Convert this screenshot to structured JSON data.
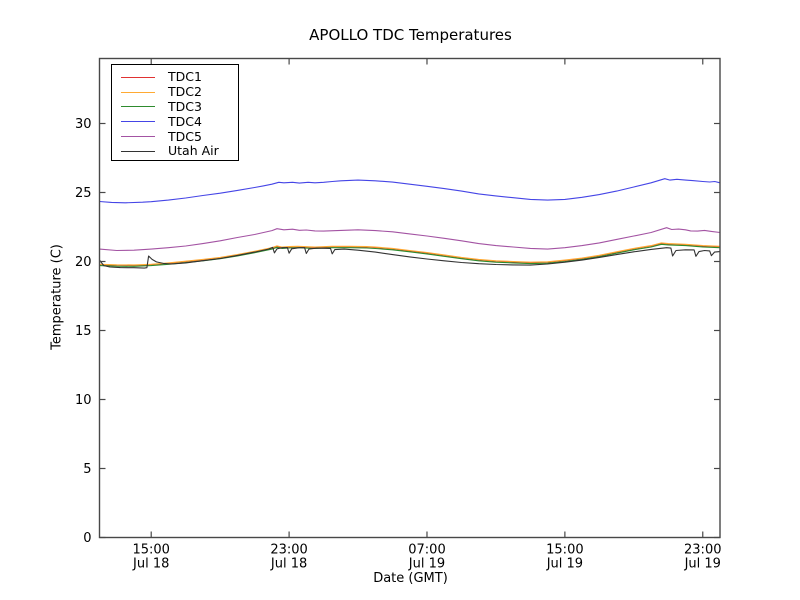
{
  "window": {
    "background": "#ffffff"
  },
  "chart_data": {
    "type": "line",
    "title": "APOLLO TDC Temperatures",
    "xlabel": "Date (GMT)",
    "ylabel": "Temperature (C)",
    "x_unit_hours_since": "Jul 18 12:00 GMT",
    "xlim": [
      0,
      36
    ],
    "ylim": [
      0,
      34.7
    ],
    "grid": false,
    "legend_position": "upper left",
    "tick_direction": "in",
    "axis_color": "#484848",
    "yticks": [
      0,
      5,
      10,
      15,
      20,
      25,
      30
    ],
    "xticks": [
      {
        "h": 3,
        "time": "15:00",
        "date": "Jul 18"
      },
      {
        "h": 11,
        "time": "23:00",
        "date": "Jul 18"
      },
      {
        "h": 19,
        "time": "07:00",
        "date": "Jul 19"
      },
      {
        "h": 27,
        "time": "15:00",
        "date": "Jul 19"
      },
      {
        "h": 35,
        "time": "23:00",
        "date": "Jul 19"
      }
    ],
    "series": [
      {
        "name": "TDC1",
        "color": "#e03232",
        "points": [
          [
            0,
            19.77
          ],
          [
            1,
            19.73
          ],
          [
            2,
            19.72
          ],
          [
            3,
            19.77
          ],
          [
            4,
            19.87
          ],
          [
            5,
            19.99
          ],
          [
            6,
            20.12
          ],
          [
            7,
            20.27
          ],
          [
            8,
            20.47
          ],
          [
            9,
            20.71
          ],
          [
            10,
            20.97
          ],
          [
            10.3,
            21.1
          ],
          [
            10.6,
            21.01
          ],
          [
            11,
            21.05
          ],
          [
            11.5,
            21.07
          ],
          [
            12,
            21.04
          ],
          [
            12.5,
            21.01
          ],
          [
            13,
            21.04
          ],
          [
            13.5,
            21.07
          ],
          [
            14.5,
            21.07
          ],
          [
            15.5,
            21.05
          ],
          [
            16,
            21.01
          ],
          [
            17,
            20.92
          ],
          [
            18,
            20.77
          ],
          [
            19,
            20.62
          ],
          [
            20,
            20.45
          ],
          [
            21,
            20.27
          ],
          [
            22,
            20.12
          ],
          [
            23,
            20.02
          ],
          [
            24,
            19.97
          ],
          [
            25,
            19.92
          ],
          [
            26,
            19.95
          ],
          [
            27,
            20.07
          ],
          [
            28,
            20.22
          ],
          [
            29,
            20.42
          ],
          [
            30,
            20.67
          ],
          [
            31,
            20.92
          ],
          [
            32,
            21.12
          ],
          [
            32.6,
            21.32
          ],
          [
            33,
            21.27
          ],
          [
            34,
            21.22
          ],
          [
            35,
            21.13
          ],
          [
            36,
            21.07
          ]
        ]
      },
      {
        "name": "TDC2",
        "color": "#ffaa33",
        "points": [
          [
            0,
            19.8
          ],
          [
            1,
            19.76
          ],
          [
            2,
            19.75
          ],
          [
            3,
            19.8
          ],
          [
            4,
            19.9
          ],
          [
            5,
            20.02
          ],
          [
            6,
            20.15
          ],
          [
            7,
            20.3
          ],
          [
            8,
            20.5
          ],
          [
            9,
            20.74
          ],
          [
            10,
            21.0
          ],
          [
            10.3,
            21.13
          ],
          [
            10.6,
            21.04
          ],
          [
            11,
            21.08
          ],
          [
            11.5,
            21.1
          ],
          [
            12,
            21.07
          ],
          [
            12.5,
            21.04
          ],
          [
            13,
            21.07
          ],
          [
            13.5,
            21.1
          ],
          [
            14.5,
            21.1
          ],
          [
            15.5,
            21.08
          ],
          [
            16,
            21.04
          ],
          [
            17,
            20.95
          ],
          [
            18,
            20.8
          ],
          [
            19,
            20.65
          ],
          [
            20,
            20.48
          ],
          [
            21,
            20.3
          ],
          [
            22,
            20.15
          ],
          [
            23,
            20.05
          ],
          [
            24,
            20.0
          ],
          [
            25,
            19.95
          ],
          [
            26,
            19.98
          ],
          [
            27,
            20.1
          ],
          [
            28,
            20.25
          ],
          [
            29,
            20.45
          ],
          [
            30,
            20.7
          ],
          [
            31,
            20.95
          ],
          [
            32,
            21.15
          ],
          [
            32.6,
            21.35
          ],
          [
            33,
            21.3
          ],
          [
            34,
            21.25
          ],
          [
            35,
            21.16
          ],
          [
            36,
            21.1
          ]
        ]
      },
      {
        "name": "TDC3",
        "color": "#2e8b2e",
        "points": [
          [
            0,
            19.7
          ],
          [
            1,
            19.66
          ],
          [
            2,
            19.65
          ],
          [
            3,
            19.7
          ],
          [
            4,
            19.8
          ],
          [
            5,
            19.92
          ],
          [
            6,
            20.05
          ],
          [
            7,
            20.2
          ],
          [
            8,
            20.4
          ],
          [
            9,
            20.64
          ],
          [
            10,
            20.9
          ],
          [
            10.3,
            21.03
          ],
          [
            10.6,
            20.94
          ],
          [
            11,
            20.98
          ],
          [
            11.5,
            21.0
          ],
          [
            12,
            20.97
          ],
          [
            12.5,
            20.94
          ],
          [
            13,
            20.97
          ],
          [
            13.5,
            21.0
          ],
          [
            14.5,
            21.0
          ],
          [
            15.5,
            20.98
          ],
          [
            16,
            20.94
          ],
          [
            17,
            20.85
          ],
          [
            18,
            20.7
          ],
          [
            19,
            20.55
          ],
          [
            20,
            20.38
          ],
          [
            21,
            20.2
          ],
          [
            22,
            20.05
          ],
          [
            23,
            19.95
          ],
          [
            24,
            19.9
          ],
          [
            25,
            19.85
          ],
          [
            26,
            19.88
          ],
          [
            27,
            20.0
          ],
          [
            28,
            20.15
          ],
          [
            29,
            20.35
          ],
          [
            30,
            20.6
          ],
          [
            31,
            20.85
          ],
          [
            32,
            21.05
          ],
          [
            32.6,
            21.25
          ],
          [
            33,
            21.2
          ],
          [
            34,
            21.15
          ],
          [
            35,
            21.06
          ],
          [
            36,
            21.0
          ]
        ]
      },
      {
        "name": "TDC4",
        "color": "#4545e6",
        "points": [
          [
            0,
            24.35
          ],
          [
            0.7,
            24.28
          ],
          [
            1.5,
            24.25
          ],
          [
            2.5,
            24.3
          ],
          [
            3,
            24.33
          ],
          [
            4,
            24.45
          ],
          [
            5,
            24.6
          ],
          [
            6,
            24.78
          ],
          [
            7,
            24.95
          ],
          [
            8,
            25.15
          ],
          [
            9,
            25.36
          ],
          [
            9.5,
            25.48
          ],
          [
            10,
            25.6
          ],
          [
            10.4,
            25.74
          ],
          [
            10.7,
            25.7
          ],
          [
            11.2,
            25.74
          ],
          [
            11.6,
            25.68
          ],
          [
            12.1,
            25.74
          ],
          [
            12.5,
            25.7
          ],
          [
            13,
            25.74
          ],
          [
            13.5,
            25.8
          ],
          [
            14,
            25.85
          ],
          [
            15,
            25.9
          ],
          [
            16,
            25.85
          ],
          [
            17,
            25.75
          ],
          [
            18,
            25.6
          ],
          [
            19,
            25.45
          ],
          [
            20,
            25.28
          ],
          [
            21,
            25.1
          ],
          [
            22,
            24.9
          ],
          [
            23,
            24.75
          ],
          [
            24,
            24.62
          ],
          [
            25,
            24.5
          ],
          [
            26,
            24.45
          ],
          [
            27,
            24.5
          ],
          [
            28,
            24.65
          ],
          [
            29,
            24.85
          ],
          [
            30,
            25.1
          ],
          [
            31,
            25.4
          ],
          [
            32,
            25.7
          ],
          [
            32.8,
            26.0
          ],
          [
            33.1,
            25.9
          ],
          [
            33.5,
            25.96
          ],
          [
            34,
            25.9
          ],
          [
            34.4,
            25.86
          ],
          [
            35,
            25.8
          ],
          [
            35.4,
            25.76
          ],
          [
            35.7,
            25.8
          ],
          [
            36,
            25.7
          ]
        ]
      },
      {
        "name": "TDC5",
        "color": "#a353a3",
        "points": [
          [
            0,
            20.9
          ],
          [
            1,
            20.8
          ],
          [
            2,
            20.82
          ],
          [
            3,
            20.9
          ],
          [
            4,
            21.0
          ],
          [
            5,
            21.12
          ],
          [
            6,
            21.3
          ],
          [
            7,
            21.5
          ],
          [
            8,
            21.74
          ],
          [
            9,
            21.96
          ],
          [
            10,
            22.24
          ],
          [
            10.3,
            22.38
          ],
          [
            10.7,
            22.3
          ],
          [
            11.2,
            22.34
          ],
          [
            11.6,
            22.26
          ],
          [
            12,
            22.28
          ],
          [
            12.5,
            22.22
          ],
          [
            13,
            22.2
          ],
          [
            14,
            22.25
          ],
          [
            15,
            22.3
          ],
          [
            16,
            22.24
          ],
          [
            17,
            22.15
          ],
          [
            18,
            22.0
          ],
          [
            19,
            21.85
          ],
          [
            20,
            21.68
          ],
          [
            21,
            21.5
          ],
          [
            22,
            21.3
          ],
          [
            23,
            21.15
          ],
          [
            24,
            21.05
          ],
          [
            25,
            20.95
          ],
          [
            26,
            20.9
          ],
          [
            27,
            21.0
          ],
          [
            28,
            21.15
          ],
          [
            29,
            21.35
          ],
          [
            30,
            21.6
          ],
          [
            31,
            21.85
          ],
          [
            32,
            22.1
          ],
          [
            32.9,
            22.45
          ],
          [
            33.2,
            22.32
          ],
          [
            33.6,
            22.35
          ],
          [
            34,
            22.3
          ],
          [
            34.3,
            22.22
          ],
          [
            34.7,
            22.2
          ],
          [
            35.1,
            22.25
          ],
          [
            35.5,
            22.18
          ],
          [
            36,
            22.1
          ]
        ]
      },
      {
        "name": "Utah Air",
        "color": "#333333",
        "points": [
          [
            0,
            20.1
          ],
          [
            0.25,
            19.7
          ],
          [
            0.6,
            19.6
          ],
          [
            1.2,
            19.56
          ],
          [
            2,
            19.55
          ],
          [
            2.6,
            19.52
          ],
          [
            2.75,
            19.55
          ],
          [
            2.85,
            20.4
          ],
          [
            3.05,
            20.15
          ],
          [
            3.3,
            19.97
          ],
          [
            3.7,
            19.86
          ],
          [
            4.2,
            19.82
          ],
          [
            5,
            19.9
          ],
          [
            6,
            20.06
          ],
          [
            7,
            20.22
          ],
          [
            8,
            20.44
          ],
          [
            9,
            20.68
          ],
          [
            9.8,
            20.9
          ],
          [
            10.05,
            21.02
          ],
          [
            10.15,
            20.62
          ],
          [
            10.3,
            20.92
          ],
          [
            10.6,
            21.0
          ],
          [
            10.9,
            21.01
          ],
          [
            11,
            20.6
          ],
          [
            11.15,
            20.92
          ],
          [
            11.6,
            21.0
          ],
          [
            11.9,
            21.0
          ],
          [
            12,
            20.58
          ],
          [
            12.15,
            20.9
          ],
          [
            12.6,
            20.97
          ],
          [
            13.4,
            20.95
          ],
          [
            13.5,
            20.55
          ],
          [
            13.65,
            20.86
          ],
          [
            14.2,
            20.9
          ],
          [
            15,
            20.82
          ],
          [
            16,
            20.68
          ],
          [
            17,
            20.5
          ],
          [
            18,
            20.33
          ],
          [
            19,
            20.18
          ],
          [
            20,
            20.05
          ],
          [
            21,
            19.93
          ],
          [
            22,
            19.84
          ],
          [
            23,
            19.78
          ],
          [
            24,
            19.75
          ],
          [
            25,
            19.74
          ],
          [
            26,
            19.82
          ],
          [
            27,
            19.95
          ],
          [
            28,
            20.1
          ],
          [
            29,
            20.3
          ],
          [
            30,
            20.5
          ],
          [
            31,
            20.7
          ],
          [
            32,
            20.88
          ],
          [
            32.9,
            21.0
          ],
          [
            33.15,
            20.97
          ],
          [
            33.25,
            20.4
          ],
          [
            33.45,
            20.8
          ],
          [
            34,
            20.85
          ],
          [
            34.5,
            20.84
          ],
          [
            34.6,
            20.38
          ],
          [
            34.78,
            20.72
          ],
          [
            35.1,
            20.8
          ],
          [
            35.4,
            20.77
          ],
          [
            35.5,
            20.42
          ],
          [
            35.68,
            20.68
          ],
          [
            36,
            20.72
          ]
        ]
      }
    ]
  }
}
